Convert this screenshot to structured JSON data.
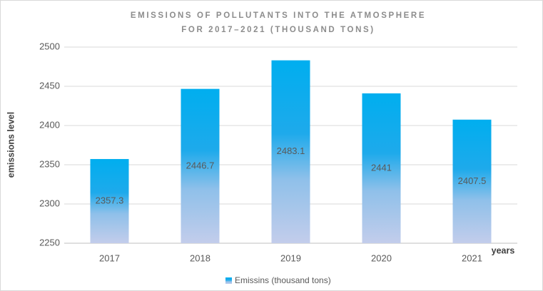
{
  "chart_data": {
    "type": "bar",
    "title": "EMISSIONS OF POLLUTANTS INTO THE ATMOSPHERE FOR 2017–2021 (THOUSAND TONS)",
    "x_label": "years",
    "y_label": "emissions level",
    "categories": [
      "2017",
      "2018",
      "2019",
      "2020",
      "2021"
    ],
    "series": [
      {
        "name": "Emissins (thousand tons)",
        "color": "#00b0f0",
        "values": [
          2357.3,
          2446.7,
          2483.1,
          2441,
          2407.5
        ]
      }
    ],
    "ylim": [
      2250,
      2500
    ],
    "yticks": [
      2250,
      2300,
      2350,
      2400,
      2450,
      2500
    ],
    "grid": true,
    "legend": "bottom"
  }
}
